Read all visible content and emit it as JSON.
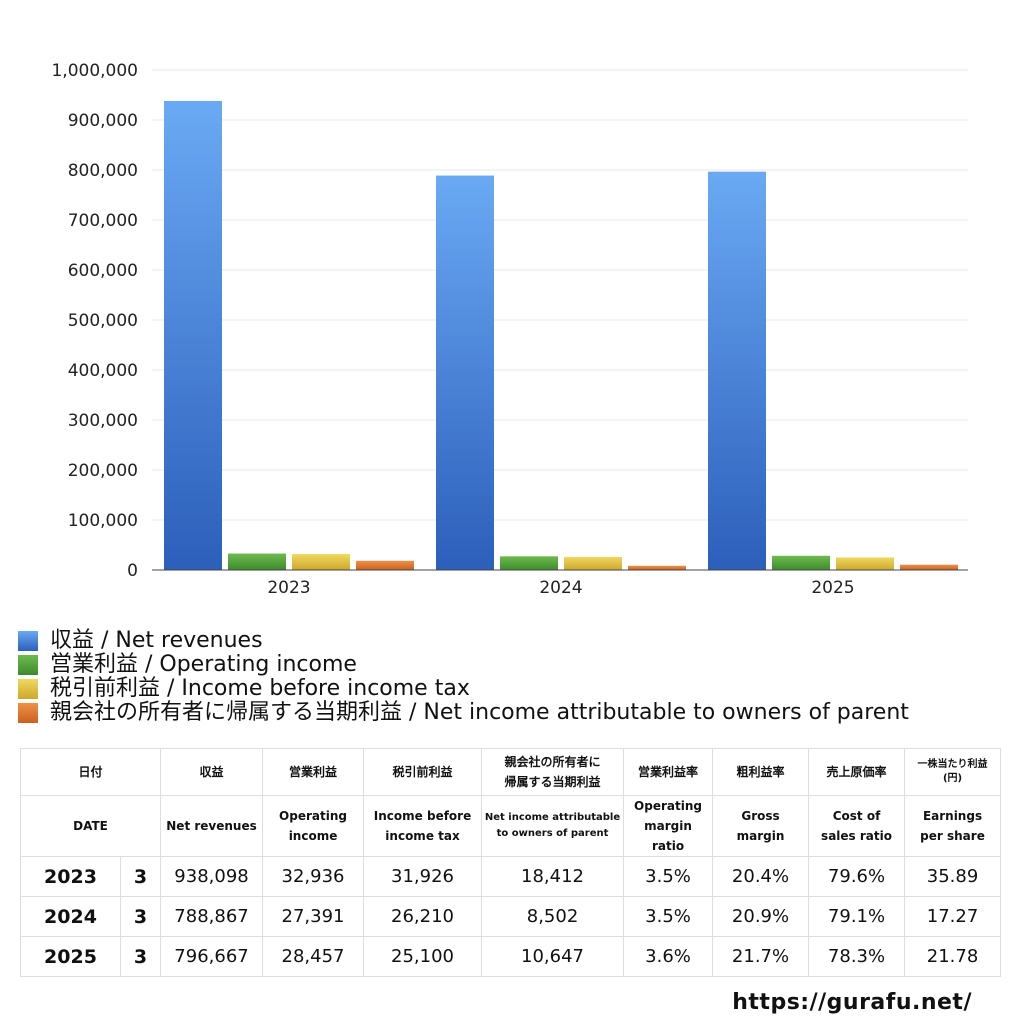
{
  "chart_data": {
    "type": "bar",
    "categories": [
      "2023",
      "2024",
      "2025"
    ],
    "series": [
      {
        "name": "収益 / Net revenues",
        "values": [
          938098,
          788867,
          796667
        ],
        "color": "#3d7fdc"
      },
      {
        "name": "営業利益 / Operating income",
        "values": [
          32936,
          27391,
          28457
        ],
        "color": "#5aa43f"
      },
      {
        "name": "税引前利益 / Income before income tax",
        "values": [
          31926,
          26210,
          25100
        ],
        "color": "#e3c33e"
      },
      {
        "name": "親会社の所有者に帰属する当期利益 / Net income attributable to owners of parent",
        "values": [
          18412,
          8502,
          10647
        ],
        "color": "#e07b32"
      }
    ],
    "ylim": [
      0,
      1000000
    ],
    "yticks": [
      0,
      100000,
      200000,
      300000,
      400000,
      500000,
      600000,
      700000,
      800000,
      900000,
      1000000
    ],
    "ytick_labels": [
      "0",
      "100,000",
      "200,000",
      "300,000",
      "400,000",
      "500,000",
      "600,000",
      "700,000",
      "800,000",
      "900,000",
      "1,000,000"
    ],
    "grid": true,
    "legend_position": "bottom"
  },
  "table": {
    "headers_ja": {
      "date": "日付",
      "revenue": "収益",
      "operating_income": "営業利益",
      "pretax_income": "税引前利益",
      "net_income_line1": "親会社の所有者に",
      "net_income_line2": "帰属する当期利益",
      "operating_margin": "営業利益率",
      "gross_margin": "粗利益率",
      "cost_ratio": "売上原価率",
      "eps_line1": "一株当たり利益",
      "eps_line2": "(円)"
    },
    "headers_en": {
      "date": "DATE",
      "revenue": "Net revenues",
      "operating_income_line1": "Operating",
      "operating_income_line2": "income",
      "pretax_income_line1": "Income before",
      "pretax_income_line2": "income tax",
      "net_income_line1": "Net income attributable",
      "net_income_line2": "to owners of parent",
      "operating_margin_line1": "Operating",
      "operating_margin_line2": "margin",
      "operating_margin_line3": "ratio",
      "gross_margin_line1": "Gross",
      "gross_margin_line2": "margin",
      "cost_ratio_line1": "Cost of",
      "cost_ratio_line2": "sales ratio",
      "eps_line1": "Earnings",
      "eps_line2": "per share"
    },
    "rows": [
      {
        "year": "2023",
        "month": "3",
        "revenue": "938,098",
        "operating_income": "32,936",
        "pretax_income": "31,926",
        "net_income": "18,412",
        "operating_margin": "3.5%",
        "gross_margin": "20.4%",
        "cost_ratio": "79.6%",
        "eps": "35.89"
      },
      {
        "year": "2024",
        "month": "3",
        "revenue": "788,867",
        "operating_income": "27,391",
        "pretax_income": "26,210",
        "net_income": "8,502",
        "operating_margin": "3.5%",
        "gross_margin": "20.9%",
        "cost_ratio": "79.1%",
        "eps": "17.27"
      },
      {
        "year": "2025",
        "month": "3",
        "revenue": "796,667",
        "operating_income": "28,457",
        "pretax_income": "25,100",
        "net_income": "10,647",
        "operating_margin": "3.6%",
        "gross_margin": "21.7%",
        "cost_ratio": "78.3%",
        "eps": "21.78"
      }
    ]
  },
  "footer": {
    "url": "https://gurafu.net/"
  }
}
